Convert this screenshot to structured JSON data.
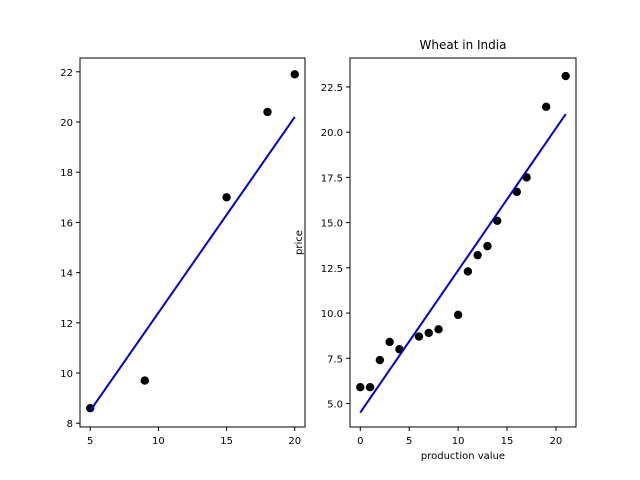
{
  "chart_data": [
    {
      "type": "scatter",
      "title": "",
      "xlabel": "",
      "ylabel": "",
      "xlim": [
        4.25,
        20.75
      ],
      "ylim": [
        7.85,
        22.55
      ],
      "xticks": [
        5,
        10,
        15,
        20
      ],
      "yticks": [
        8,
        10,
        12,
        14,
        16,
        18,
        20,
        22
      ],
      "ytick_labels": [
        "8",
        "10",
        "12",
        "14",
        "16",
        "18",
        "20",
        "22"
      ],
      "grid": false,
      "series": [
        {
          "kind": "scatter",
          "color": "#000000",
          "x": [
            5,
            9,
            15,
            18,
            20
          ],
          "y": [
            8.6,
            9.7,
            17.0,
            20.4,
            21.9
          ]
        },
        {
          "kind": "line",
          "color": "#0000cc",
          "x": [
            5,
            20
          ],
          "y": [
            8.5,
            20.2
          ]
        }
      ]
    },
    {
      "type": "scatter",
      "title": "Wheat in India",
      "xlabel": "production value",
      "ylabel": "price",
      "xlim": [
        -1.05,
        22.05
      ],
      "ylim": [
        3.7,
        24.1
      ],
      "xticks": [
        0,
        5,
        10,
        15,
        20
      ],
      "yticks": [
        5.0,
        7.5,
        10.0,
        12.5,
        15.0,
        17.5,
        20.0,
        22.5
      ],
      "ytick_labels": [
        "5.0",
        "7.5",
        "10.0",
        "12.5",
        "15.0",
        "17.5",
        "20.0",
        "22.5"
      ],
      "grid": false,
      "series": [
        {
          "kind": "scatter",
          "color": "#000000",
          "x": [
            0,
            1,
            2,
            3,
            4,
            6,
            7,
            8,
            10,
            11,
            12,
            13,
            14,
            16,
            17,
            19,
            21
          ],
          "y": [
            5.9,
            5.9,
            7.4,
            8.4,
            8.0,
            8.7,
            8.9,
            9.1,
            9.9,
            12.3,
            13.2,
            13.7,
            15.1,
            16.7,
            17.5,
            21.4,
            23.1
          ]
        },
        {
          "kind": "line",
          "color": "#0000cc",
          "x": [
            0,
            21
          ],
          "y": [
            4.5,
            21.0
          ]
        }
      ]
    }
  ]
}
